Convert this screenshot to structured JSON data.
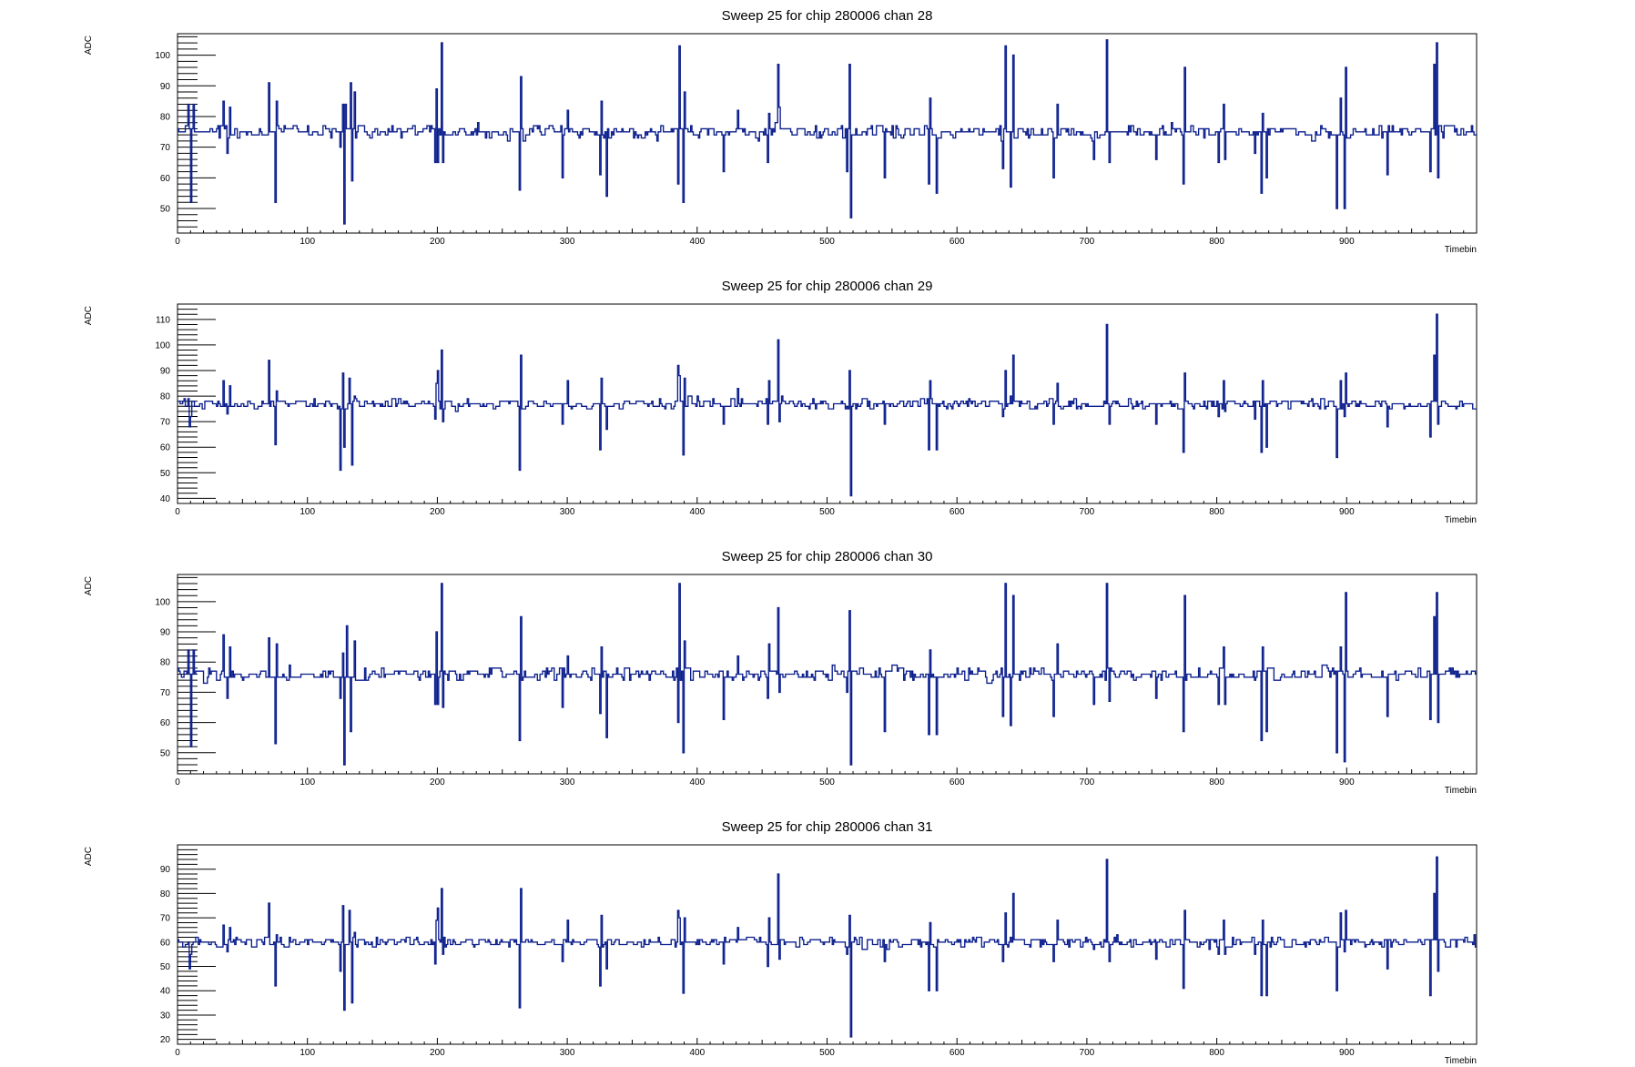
{
  "chart_data": [
    {
      "type": "line",
      "title": "Sweep 25 for chip 280006 chan 28",
      "xlabel": "Timebin",
      "ylabel": "ADC",
      "xlim": [
        0,
        1000
      ],
      "ylim": [
        42,
        107
      ],
      "xticks": [
        0,
        100,
        200,
        300,
        400,
        500,
        600,
        700,
        800,
        900
      ],
      "yticks": [
        50,
        60,
        70,
        80,
        90,
        100
      ],
      "grid": false,
      "legend": "none",
      "color": "#0b1e8c",
      "baseline": 75,
      "noise": 1.6,
      "spikes": [
        [
          8,
          84
        ],
        [
          10,
          52
        ],
        [
          12,
          84
        ],
        [
          35,
          85
        ],
        [
          38,
          68
        ],
        [
          40,
          83
        ],
        [
          70,
          91
        ],
        [
          75,
          52
        ],
        [
          76,
          85
        ],
        [
          125,
          70
        ],
        [
          127,
          84
        ],
        [
          128,
          45
        ],
        [
          129,
          84
        ],
        [
          133,
          91
        ],
        [
          134,
          59
        ],
        [
          136,
          88
        ],
        [
          198,
          65
        ],
        [
          199,
          89
        ],
        [
          200,
          65
        ],
        [
          203,
          104
        ],
        [
          204,
          65
        ],
        [
          263,
          56
        ],
        [
          264,
          93
        ],
        [
          296,
          60
        ],
        [
          300,
          82
        ],
        [
          325,
          61
        ],
        [
          326,
          85
        ],
        [
          330,
          54
        ],
        [
          385,
          58
        ],
        [
          386,
          103
        ],
        [
          389,
          52
        ],
        [
          390,
          88
        ],
        [
          420,
          62
        ],
        [
          431,
          82
        ],
        [
          454,
          65
        ],
        [
          455,
          81
        ],
        [
          462,
          97
        ],
        [
          463,
          83
        ],
        [
          515,
          62
        ],
        [
          517,
          97
        ],
        [
          518,
          47
        ],
        [
          544,
          60
        ],
        [
          578,
          58
        ],
        [
          579,
          86
        ],
        [
          584,
          55
        ],
        [
          635,
          63
        ],
        [
          637,
          103
        ],
        [
          641,
          57
        ],
        [
          643,
          100
        ],
        [
          674,
          60
        ],
        [
          677,
          84
        ],
        [
          705,
          66
        ],
        [
          715,
          105
        ],
        [
          717,
          65
        ],
        [
          753,
          66
        ],
        [
          774,
          58
        ],
        [
          775,
          96
        ],
        [
          801,
          65
        ],
        [
          805,
          84
        ],
        [
          806,
          66
        ],
        [
          829,
          68
        ],
        [
          834,
          55
        ],
        [
          835,
          81
        ],
        [
          838,
          60
        ],
        [
          892,
          50
        ],
        [
          895,
          86
        ],
        [
          898,
          50
        ],
        [
          899,
          96
        ],
        [
          931,
          61
        ],
        [
          964,
          62
        ],
        [
          967,
          97
        ],
        [
          969,
          104
        ],
        [
          970,
          60
        ]
      ],
      "ytick_labels": [
        "50",
        "60",
        "70",
        "80",
        "90",
        "100"
      ]
    },
    {
      "type": "line",
      "title": "Sweep 25 for chip 280006 chan 29",
      "xlabel": "Timebin",
      "ylabel": "ADC",
      "xlim": [
        0,
        1000
      ],
      "ylim": [
        38,
        116
      ],
      "xticks": [
        0,
        100,
        200,
        300,
        400,
        500,
        600,
        700,
        800,
        900
      ],
      "yticks": [
        40,
        50,
        60,
        70,
        80,
        90,
        100,
        110
      ],
      "grid": false,
      "legend": "none",
      "color": "#0b1e8c",
      "baseline": 77,
      "noise": 1.6,
      "spikes": [
        [
          9,
          68
        ],
        [
          10,
          72
        ],
        [
          35,
          86
        ],
        [
          38,
          73
        ],
        [
          40,
          84
        ],
        [
          70,
          94
        ],
        [
          75,
          61
        ],
        [
          76,
          82
        ],
        [
          125,
          51
        ],
        [
          127,
          89
        ],
        [
          128,
          60
        ],
        [
          132,
          87
        ],
        [
          134,
          53
        ],
        [
          136,
          80
        ],
        [
          198,
          71
        ],
        [
          199,
          85
        ],
        [
          200,
          90
        ],
        [
          203,
          98
        ],
        [
          204,
          70
        ],
        [
          263,
          51
        ],
        [
          264,
          96
        ],
        [
          296,
          69
        ],
        [
          300,
          86
        ],
        [
          325,
          59
        ],
        [
          326,
          87
        ],
        [
          330,
          67
        ],
        [
          385,
          92
        ],
        [
          386,
          88
        ],
        [
          389,
          57
        ],
        [
          390,
          87
        ],
        [
          420,
          69
        ],
        [
          431,
          83
        ],
        [
          454,
          69
        ],
        [
          455,
          86
        ],
        [
          462,
          102
        ],
        [
          463,
          70
        ],
        [
          515,
          76
        ],
        [
          517,
          90
        ],
        [
          518,
          41
        ],
        [
          544,
          69
        ],
        [
          578,
          59
        ],
        [
          579,
          86
        ],
        [
          584,
          59
        ],
        [
          635,
          72
        ],
        [
          637,
          90
        ],
        [
          641,
          80
        ],
        [
          643,
          96
        ],
        [
          674,
          69
        ],
        [
          677,
          85
        ],
        [
          705,
          76
        ],
        [
          715,
          108
        ],
        [
          717,
          69
        ],
        [
          753,
          69
        ],
        [
          774,
          58
        ],
        [
          775,
          89
        ],
        [
          801,
          72
        ],
        [
          805,
          86
        ],
        [
          806,
          74
        ],
        [
          829,
          71
        ],
        [
          834,
          58
        ],
        [
          835,
          86
        ],
        [
          838,
          60
        ],
        [
          892,
          56
        ],
        [
          895,
          86
        ],
        [
          898,
          72
        ],
        [
          899,
          89
        ],
        [
          931,
          68
        ],
        [
          964,
          64
        ],
        [
          967,
          96
        ],
        [
          969,
          112
        ],
        [
          970,
          69
        ]
      ],
      "ytick_labels": [
        "40",
        "50",
        "60",
        "70",
        "80",
        "90",
        "100",
        "110"
      ]
    },
    {
      "type": "line",
      "title": "Sweep 25 for chip 280006 chan 30",
      "xlabel": "Timebin",
      "ylabel": "ADC",
      "xlim": [
        0,
        1000
      ],
      "ylim": [
        43,
        109
      ],
      "xticks": [
        0,
        100,
        200,
        300,
        400,
        500,
        600,
        700,
        800,
        900
      ],
      "yticks": [
        50,
        60,
        70,
        80,
        90,
        100
      ],
      "grid": false,
      "legend": "none",
      "color": "#0b1e8c",
      "baseline": 76,
      "noise": 1.6,
      "spikes": [
        [
          8,
          84
        ],
        [
          10,
          52
        ],
        [
          12,
          84
        ],
        [
          35,
          89
        ],
        [
          38,
          68
        ],
        [
          40,
          85
        ],
        [
          70,
          88
        ],
        [
          75,
          53
        ],
        [
          76,
          86
        ],
        [
          125,
          68
        ],
        [
          127,
          83
        ],
        [
          128,
          46
        ],
        [
          130,
          92
        ],
        [
          133,
          57
        ],
        [
          136,
          87
        ],
        [
          198,
          66
        ],
        [
          199,
          90
        ],
        [
          200,
          66
        ],
        [
          203,
          106
        ],
        [
          204,
          65
        ],
        [
          263,
          54
        ],
        [
          264,
          95
        ],
        [
          296,
          65
        ],
        [
          300,
          82
        ],
        [
          325,
          63
        ],
        [
          326,
          85
        ],
        [
          330,
          55
        ],
        [
          385,
          60
        ],
        [
          386,
          106
        ],
        [
          389,
          50
        ],
        [
          390,
          87
        ],
        [
          420,
          61
        ],
        [
          431,
          82
        ],
        [
          454,
          68
        ],
        [
          455,
          86
        ],
        [
          462,
          98
        ],
        [
          463,
          70
        ],
        [
          515,
          70
        ],
        [
          517,
          97
        ],
        [
          518,
          46
        ],
        [
          544,
          57
        ],
        [
          578,
          56
        ],
        [
          579,
          84
        ],
        [
          584,
          56
        ],
        [
          635,
          62
        ],
        [
          637,
          106
        ],
        [
          641,
          59
        ],
        [
          643,
          102
        ],
        [
          674,
          62
        ],
        [
          677,
          86
        ],
        [
          705,
          66
        ],
        [
          715,
          106
        ],
        [
          717,
          67
        ],
        [
          753,
          68
        ],
        [
          774,
          57
        ],
        [
          775,
          102
        ],
        [
          801,
          66
        ],
        [
          805,
          85
        ],
        [
          806,
          66
        ],
        [
          829,
          74
        ],
        [
          834,
          54
        ],
        [
          835,
          85
        ],
        [
          838,
          57
        ],
        [
          892,
          50
        ],
        [
          895,
          85
        ],
        [
          898,
          47
        ],
        [
          899,
          103
        ],
        [
          931,
          62
        ],
        [
          964,
          61
        ],
        [
          967,
          95
        ],
        [
          969,
          103
        ],
        [
          970,
          60
        ]
      ],
      "ytick_labels": [
        "50",
        "60",
        "70",
        "80",
        "90",
        "100"
      ]
    },
    {
      "type": "line",
      "title": "Sweep 25 for chip 280006 chan 31",
      "xlabel": "Timebin",
      "ylabel": "ADC",
      "xlim": [
        0,
        1000
      ],
      "ylim": [
        18,
        100
      ],
      "xticks": [
        0,
        100,
        200,
        300,
        400,
        500,
        600,
        700,
        800,
        900
      ],
      "yticks": [
        20,
        30,
        40,
        50,
        60,
        70,
        80,
        90
      ],
      "grid": false,
      "legend": "none",
      "color": "#0b1e8c",
      "baseline": 60,
      "noise": 1.6,
      "spikes": [
        [
          9,
          49
        ],
        [
          10,
          55
        ],
        [
          35,
          67
        ],
        [
          38,
          56
        ],
        [
          40,
          66
        ],
        [
          70,
          76
        ],
        [
          75,
          42
        ],
        [
          76,
          63
        ],
        [
          125,
          48
        ],
        [
          127,
          75
        ],
        [
          128,
          32
        ],
        [
          132,
          73
        ],
        [
          134,
          35
        ],
        [
          136,
          64
        ],
        [
          198,
          51
        ],
        [
          199,
          69
        ],
        [
          200,
          74
        ],
        [
          203,
          82
        ],
        [
          204,
          55
        ],
        [
          263,
          33
        ],
        [
          264,
          82
        ],
        [
          296,
          52
        ],
        [
          300,
          69
        ],
        [
          325,
          42
        ],
        [
          326,
          71
        ],
        [
          330,
          49
        ],
        [
          385,
          73
        ],
        [
          386,
          70
        ],
        [
          389,
          39
        ],
        [
          390,
          70
        ],
        [
          420,
          51
        ],
        [
          431,
          66
        ],
        [
          454,
          50
        ],
        [
          455,
          70
        ],
        [
          462,
          88
        ],
        [
          463,
          53
        ],
        [
          515,
          55
        ],
        [
          517,
          71
        ],
        [
          518,
          21
        ],
        [
          544,
          52
        ],
        [
          578,
          40
        ],
        [
          579,
          68
        ],
        [
          584,
          40
        ],
        [
          635,
          52
        ],
        [
          637,
          72
        ],
        [
          641,
          62
        ],
        [
          643,
          80
        ],
        [
          674,
          52
        ],
        [
          677,
          69
        ],
        [
          705,
          57
        ],
        [
          715,
          94
        ],
        [
          717,
          52
        ],
        [
          753,
          53
        ],
        [
          774,
          41
        ],
        [
          775,
          73
        ],
        [
          801,
          55
        ],
        [
          805,
          69
        ],
        [
          806,
          55
        ],
        [
          829,
          55
        ],
        [
          834,
          38
        ],
        [
          835,
          69
        ],
        [
          838,
          38
        ],
        [
          892,
          40
        ],
        [
          895,
          72
        ],
        [
          898,
          56
        ],
        [
          899,
          73
        ],
        [
          931,
          49
        ],
        [
          964,
          38
        ],
        [
          967,
          80
        ],
        [
          969,
          95
        ],
        [
          970,
          48
        ]
      ],
      "ytick_labels": [
        "20",
        "30",
        "40",
        "50",
        "60",
        "70",
        "80",
        "90"
      ]
    }
  ],
  "xtick_labels": [
    "0",
    "100",
    "200",
    "300",
    "400",
    "500",
    "600",
    "700",
    "800",
    "900"
  ]
}
